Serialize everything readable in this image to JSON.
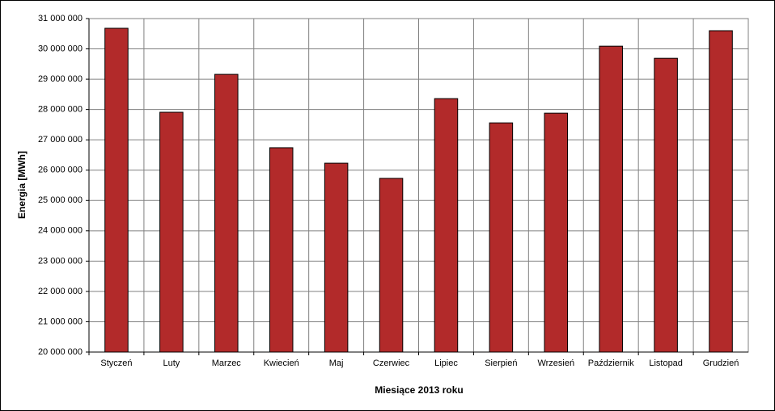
{
  "chart_data": {
    "type": "bar",
    "xlabel": "Miesiące 2013  roku",
    "ylabel": "Energia [MWh]",
    "categories": [
      "Styczeń",
      "Luty",
      "Marzec",
      "Kwiecień",
      "Maj",
      "Czerwiec",
      "Lipiec",
      "Sierpień",
      "Wrzesień",
      "Październik",
      "Listopad",
      "Grudzień"
    ],
    "values": [
      30680000,
      27910000,
      29160000,
      26740000,
      26230000,
      25730000,
      28360000,
      27560000,
      27880000,
      30090000,
      29690000,
      30600000
    ],
    "color": "#b22a2a",
    "ylim": [
      20000000,
      31000000
    ],
    "yticks": [
      {
        "value": 20000000,
        "label": "20 000 000"
      },
      {
        "value": 21000000,
        "label": "21 000 000"
      },
      {
        "value": 22000000,
        "label": "22 000 000"
      },
      {
        "value": 23000000,
        "label": "23 000 000"
      },
      {
        "value": 24000000,
        "label": "24 000 000"
      },
      {
        "value": 25000000,
        "label": "25 000 000"
      },
      {
        "value": 26000000,
        "label": "26 000 000"
      },
      {
        "value": 27000000,
        "label": "27 000 000"
      },
      {
        "value": 28000000,
        "label": "28 000 000"
      },
      {
        "value": 29000000,
        "label": "29 000 000"
      },
      {
        "value": 30000000,
        "label": "30 000 000"
      },
      {
        "value": 31000000,
        "label": "31 000 000"
      }
    ],
    "grid": true
  }
}
